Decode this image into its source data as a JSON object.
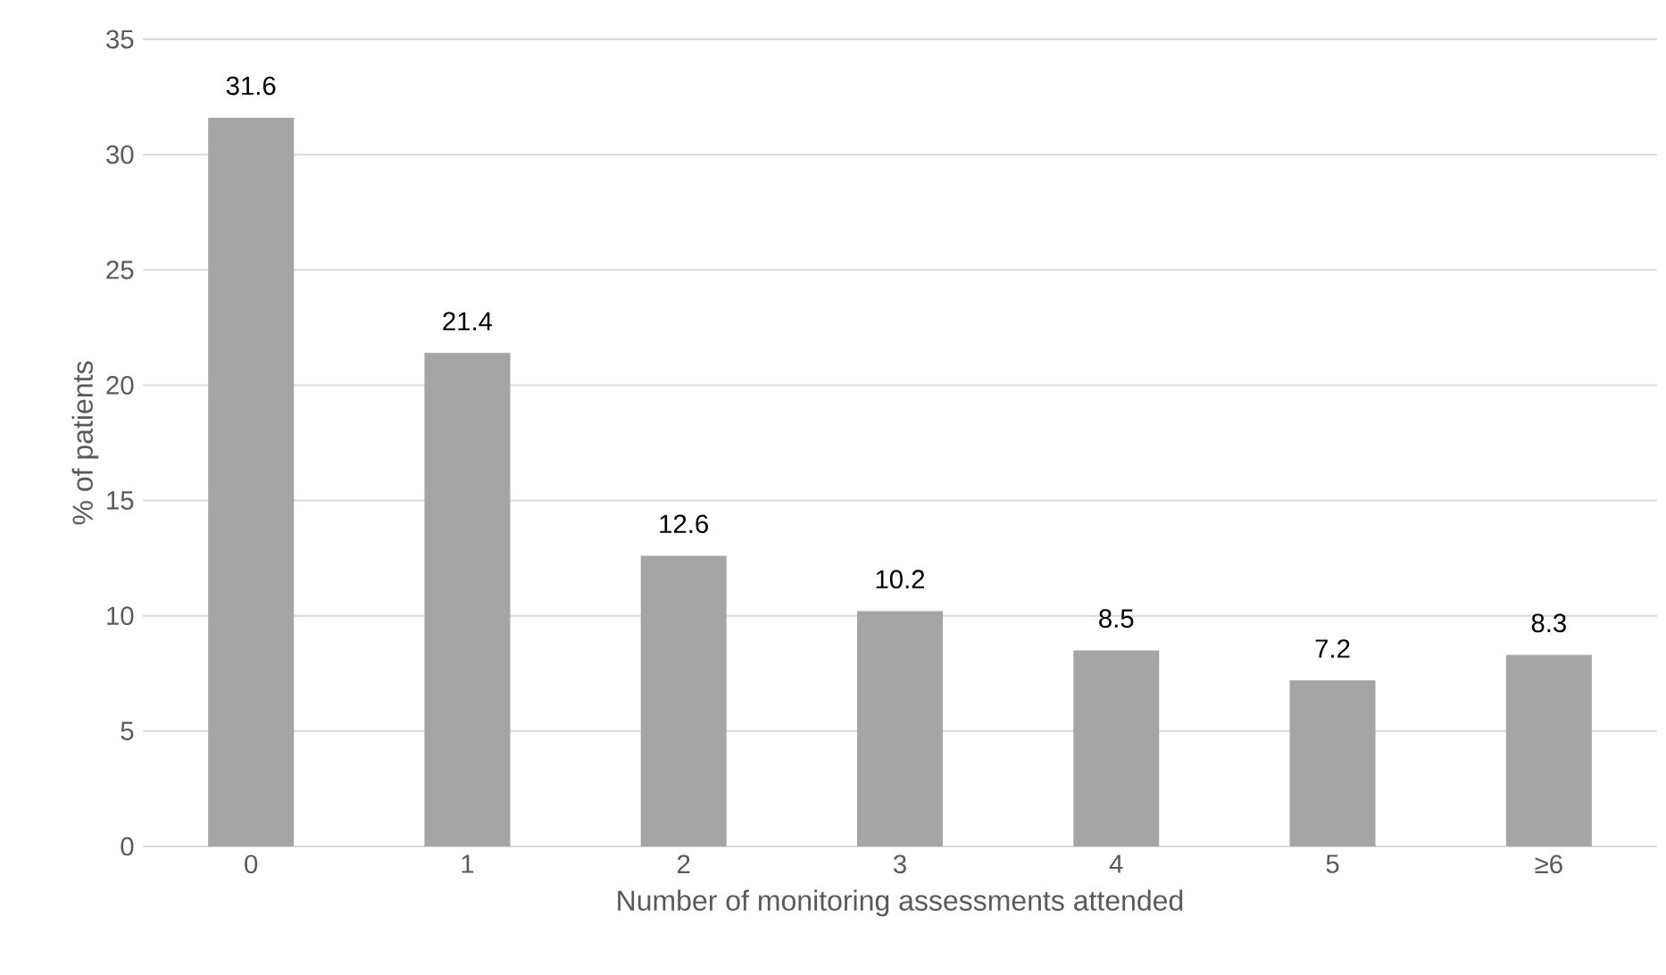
{
  "chart_data": {
    "type": "bar",
    "xlabel": "Number of monitoring assessments attended",
    "ylabel": "% of patients",
    "categories": [
      "0",
      "1",
      "2",
      "3",
      "4",
      "5",
      "≥6"
    ],
    "values": [
      31.6,
      21.4,
      12.6,
      10.2,
      8.5,
      7.2,
      8.3
    ],
    "color": "#a5a5a5",
    "ylim": [
      0,
      35
    ],
    "yticks": [
      0,
      5,
      10,
      15,
      20,
      25,
      30,
      35
    ],
    "grid": "y",
    "data_labels": true
  }
}
